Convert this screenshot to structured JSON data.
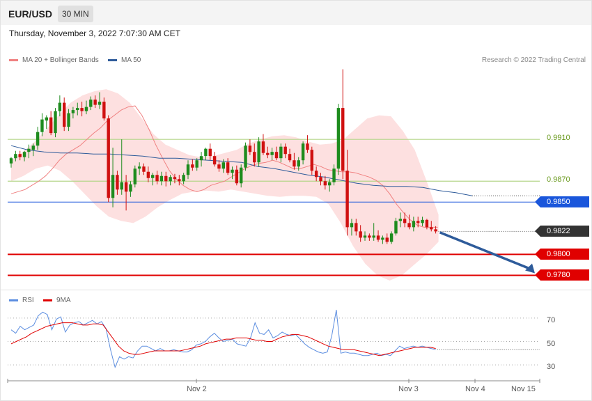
{
  "header": {
    "pair": "EUR/USD",
    "timeframe": "30 MIN"
  },
  "date_text": "Thursday, November 3, 2022 7:07:30 AM CET",
  "credit": "Research © 2022 Trading Central",
  "legend_main": [
    {
      "label": "MA 20 + Bollinger Bands",
      "color": "#f08080"
    },
    {
      "label": "MA 50",
      "color": "#2e5b9a"
    }
  ],
  "legend_rsi": [
    {
      "label": "RSI",
      "color": "#5b8de0"
    },
    {
      "label": "9MA",
      "color": "#e00000"
    }
  ],
  "colors": {
    "up": "#1e8c1e",
    "down": "#d01010",
    "ma20": "#f08080",
    "ma50": "#2e5b9a",
    "band": "#fde0e0",
    "support": "#e00000",
    "pivot": "#1a56db",
    "resistance": "#b5d68a",
    "arrow": "#2e5b9a",
    "last": "#333333"
  },
  "levels": {
    "r1": "0.9910",
    "r2": "0.9870",
    "pivot": "0.9850",
    "last": "0.9822",
    "s1": "0.9800",
    "s2": "0.9780"
  },
  "rsi_ticks": [
    "70",
    "50",
    "30"
  ],
  "x_ticks": [
    "Nov 2",
    "Nov 3",
    "Nov 4",
    "Nov 15"
  ],
  "chart_data": [
    {
      "type": "candlestick",
      "title": "EUR/USD 30 MIN",
      "ylim": [
        0.9767,
        0.998
      ],
      "levels": [
        0.991,
        0.987,
        0.985,
        0.9822,
        0.98,
        0.978
      ],
      "ohlc": [
        [
          0.9887,
          0.9893,
          0.9883,
          0.9892
        ],
        [
          0.9892,
          0.9899,
          0.9889,
          0.9896
        ],
        [
          0.9896,
          0.9899,
          0.989,
          0.9893
        ],
        [
          0.9893,
          0.9899,
          0.9889,
          0.9898
        ],
        [
          0.9898,
          0.9905,
          0.9892,
          0.9901
        ],
        [
          0.99,
          0.9906,
          0.9894,
          0.9904
        ],
        [
          0.9904,
          0.9922,
          0.99,
          0.9917
        ],
        [
          0.9917,
          0.9935,
          0.9913,
          0.9929
        ],
        [
          0.9928,
          0.9933,
          0.992,
          0.9931
        ],
        [
          0.9931,
          0.9937,
          0.9914,
          0.9916
        ],
        [
          0.9916,
          0.994,
          0.9912,
          0.9937
        ],
        [
          0.9937,
          0.9952,
          0.9932,
          0.9945
        ],
        [
          0.9945,
          0.995,
          0.9918,
          0.9922
        ],
        [
          0.9922,
          0.9939,
          0.9918,
          0.9935
        ],
        [
          0.9935,
          0.9941,
          0.993,
          0.9938
        ],
        [
          0.9938,
          0.9945,
          0.9933,
          0.994
        ],
        [
          0.994,
          0.9946,
          0.9932,
          0.9937
        ],
        [
          0.9937,
          0.9947,
          0.9934,
          0.9941
        ],
        [
          0.9941,
          0.9951,
          0.9938,
          0.9948
        ],
        [
          0.9948,
          0.9952,
          0.994,
          0.9943
        ],
        [
          0.9943,
          0.9955,
          0.9939,
          0.9946
        ],
        [
          0.9946,
          0.995,
          0.9928,
          0.993
        ],
        [
          0.993,
          0.9933,
          0.985,
          0.9854
        ],
        [
          0.9854,
          0.9902,
          0.9845,
          0.9876
        ],
        [
          0.9876,
          0.988,
          0.9857,
          0.9862
        ],
        [
          0.9862,
          0.991,
          0.9857,
          0.9869
        ],
        [
          0.9869,
          0.9876,
          0.9842,
          0.986
        ],
        [
          0.986,
          0.987,
          0.9855,
          0.9867
        ],
        [
          0.9867,
          0.9885,
          0.9864,
          0.9882
        ],
        [
          0.9882,
          0.9888,
          0.9876,
          0.9884
        ],
        [
          0.9884,
          0.9887,
          0.9876,
          0.9879
        ],
        [
          0.9879,
          0.9884,
          0.9869,
          0.9873
        ],
        [
          0.9873,
          0.9878,
          0.9866,
          0.9876
        ],
        [
          0.9876,
          0.988,
          0.9867,
          0.987
        ],
        [
          0.987,
          0.9879,
          0.9866,
          0.9875
        ],
        [
          0.9875,
          0.9879,
          0.9865,
          0.987
        ],
        [
          0.987,
          0.9876,
          0.9866,
          0.9874
        ],
        [
          0.9874,
          0.9877,
          0.9868,
          0.9872
        ],
        [
          0.9872,
          0.9876,
          0.9866,
          0.987
        ],
        [
          0.987,
          0.9878,
          0.9867,
          0.9876
        ],
        [
          0.9876,
          0.989,
          0.9872,
          0.9886
        ],
        [
          0.9886,
          0.9891,
          0.988,
          0.9883
        ],
        [
          0.9883,
          0.9892,
          0.988,
          0.989
        ],
        [
          0.989,
          0.9898,
          0.9884,
          0.9894
        ],
        [
          0.9894,
          0.9902,
          0.989,
          0.9901
        ],
        [
          0.9901,
          0.9906,
          0.989,
          0.9894
        ],
        [
          0.9894,
          0.9898,
          0.9884,
          0.9886
        ],
        [
          0.9886,
          0.989,
          0.9879,
          0.9882
        ],
        [
          0.9882,
          0.9891,
          0.9878,
          0.9888
        ],
        [
          0.9888,
          0.9892,
          0.9876,
          0.9878
        ],
        [
          0.9878,
          0.9884,
          0.9872,
          0.9881
        ],
        [
          0.9881,
          0.9885,
          0.9866,
          0.9868
        ],
        [
          0.9868,
          0.9886,
          0.9864,
          0.9883
        ],
        [
          0.9883,
          0.9907,
          0.988,
          0.9904
        ],
        [
          0.9904,
          0.991,
          0.9895,
          0.9898
        ],
        [
          0.9898,
          0.9906,
          0.9884,
          0.9888
        ],
        [
          0.9888,
          0.9912,
          0.9884,
          0.9908
        ],
        [
          0.9908,
          0.9915,
          0.9895,
          0.9897
        ],
        [
          0.9897,
          0.9903,
          0.9892,
          0.9895
        ],
        [
          0.9895,
          0.9902,
          0.989,
          0.9898
        ],
        [
          0.9898,
          0.9903,
          0.989,
          0.9892
        ],
        [
          0.9892,
          0.9906,
          0.9888,
          0.9903
        ],
        [
          0.9903,
          0.9906,
          0.9892,
          0.9896
        ],
        [
          0.9896,
          0.9901,
          0.9888,
          0.989
        ],
        [
          0.989,
          0.9897,
          0.9881,
          0.9884
        ],
        [
          0.9884,
          0.9893,
          0.988,
          0.989
        ],
        [
          0.989,
          0.9908,
          0.9886,
          0.9906
        ],
        [
          0.9906,
          0.9914,
          0.9897,
          0.99
        ],
        [
          0.99,
          0.9903,
          0.9876,
          0.988
        ],
        [
          0.988,
          0.9884,
          0.987,
          0.9874
        ],
        [
          0.9874,
          0.9878,
          0.9866,
          0.987
        ],
        [
          0.987,
          0.9875,
          0.9862,
          0.9866
        ],
        [
          0.9866,
          0.9872,
          0.986,
          0.9869
        ],
        [
          0.9869,
          0.9886,
          0.9866,
          0.9882
        ],
        [
          0.9882,
          0.9944,
          0.9876,
          0.994
        ],
        [
          0.994,
          0.9977,
          0.9872,
          0.988
        ],
        [
          0.988,
          0.99,
          0.9818,
          0.9826
        ],
        [
          0.9826,
          0.9834,
          0.9818,
          0.983
        ],
        [
          0.983,
          0.9834,
          0.9818,
          0.9822
        ],
        [
          0.9822,
          0.9828,
          0.9812,
          0.9816
        ],
        [
          0.9816,
          0.9822,
          0.9813,
          0.9818
        ],
        [
          0.9818,
          0.982,
          0.9813,
          0.9816
        ],
        [
          0.9816,
          0.983,
          0.9813,
          0.9818
        ],
        [
          0.9818,
          0.9823,
          0.9812,
          0.9814
        ],
        [
          0.9814,
          0.9818,
          0.981,
          0.9816
        ],
        [
          0.9816,
          0.982,
          0.981,
          0.9812
        ],
        [
          0.9812,
          0.9822,
          0.981,
          0.982
        ],
        [
          0.982,
          0.9835,
          0.9818,
          0.9832
        ],
        [
          0.9832,
          0.984,
          0.9826,
          0.9834
        ],
        [
          0.9834,
          0.984,
          0.9826,
          0.983
        ],
        [
          0.983,
          0.9838,
          0.9824,
          0.9826
        ],
        [
          0.9826,
          0.9836,
          0.9822,
          0.9832
        ],
        [
          0.9832,
          0.9836,
          0.9826,
          0.983
        ],
        [
          0.983,
          0.9836,
          0.9827,
          0.9833
        ],
        [
          0.9833,
          0.9834,
          0.9824,
          0.9826
        ],
        [
          0.9826,
          0.9832,
          0.9822,
          0.9824
        ],
        [
          0.9824,
          0.9827,
          0.982,
          0.9822
        ]
      ],
      "ma20": [
        0.9858,
        0.986,
        0.9862,
        0.9866,
        0.987,
        0.9875,
        0.9882,
        0.989,
        0.9896,
        0.99,
        0.9904,
        0.991,
        0.9916,
        0.9921,
        0.9928,
        0.9933,
        0.9938,
        0.9941,
        0.9942,
        0.9933,
        0.992,
        0.9905,
        0.9892,
        0.988,
        0.9872,
        0.9866,
        0.9862,
        0.986,
        0.9862,
        0.9866,
        0.9868,
        0.987,
        0.9874,
        0.9878,
        0.9882,
        0.9885,
        0.9887,
        0.9888,
        0.989,
        0.9888,
        0.9885,
        0.9882,
        0.9882,
        0.9884,
        0.9886,
        0.9884,
        0.9881,
        0.988,
        0.9879,
        0.9879,
        0.9878,
        0.9876,
        0.9874,
        0.9871,
        0.9866,
        0.9858,
        0.9848,
        0.984,
        0.9833,
        0.9828,
        0.9826,
        0.9826,
        0.9826
      ],
      "ma50": [
        0.9904,
        0.99,
        0.9898,
        0.9897,
        0.9897,
        0.9896,
        0.9896,
        0.9895,
        0.9894,
        0.9892,
        0.9892,
        0.9891,
        0.989,
        0.9889,
        0.9888,
        0.9884,
        0.9882,
        0.9879,
        0.9876,
        0.9874,
        0.9871,
        0.9868,
        0.9866,
        0.9865,
        0.9865,
        0.9864,
        0.9861,
        0.9859,
        0.9856
      ],
      "bb_upper": [
        0.989,
        0.9898,
        0.9908,
        0.992,
        0.9933,
        0.9945,
        0.9952,
        0.9956,
        0.9958,
        0.9954,
        0.9945,
        0.993,
        0.9915,
        0.9905,
        0.99,
        0.9895,
        0.9893,
        0.9894,
        0.9897,
        0.99,
        0.9906,
        0.991,
        0.9913,
        0.9914,
        0.9912,
        0.9908,
        0.9905,
        0.9906,
        0.991,
        0.992,
        0.993,
        0.9933,
        0.9932,
        0.9918,
        0.99,
        0.987,
        0.9838
      ],
      "bb_lower": [
        0.987,
        0.9875,
        0.9882,
        0.9885,
        0.988,
        0.987,
        0.9858,
        0.9846,
        0.9836,
        0.9832,
        0.983,
        0.9836,
        0.9845,
        0.9852,
        0.9858,
        0.986,
        0.9861,
        0.986,
        0.9862,
        0.986,
        0.9858,
        0.9856,
        0.9855,
        0.9856,
        0.9856,
        0.9855,
        0.9848,
        0.983,
        0.9808,
        0.9791,
        0.978,
        0.9775,
        0.978,
        0.979,
        0.98,
        0.9812
      ]
    },
    {
      "type": "line",
      "series": [
        {
          "name": "RSI",
          "values": [
            60,
            57,
            63,
            60,
            62,
            64,
            72,
            75,
            73,
            60,
            69,
            71,
            58,
            64,
            66,
            67,
            64,
            66,
            68,
            65,
            67,
            61,
            43,
            28,
            37,
            35,
            37,
            36,
            42,
            46,
            46,
            44,
            42,
            44,
            42,
            42,
            43,
            42,
            41,
            41,
            43,
            47,
            48,
            50,
            54,
            57,
            53,
            50,
            51,
            52,
            48,
            47,
            46,
            53,
            66,
            57,
            56,
            60,
            53,
            55,
            58,
            56,
            55,
            56,
            52,
            48,
            45,
            43,
            41,
            40,
            41,
            55,
            77,
            40,
            41,
            40,
            40,
            39,
            38,
            38,
            39,
            40,
            38,
            39,
            38,
            42,
            46,
            44,
            45,
            46,
            45,
            46,
            45,
            44,
            43
          ]
        },
        {
          "name": "9MA",
          "values": [
            48,
            50,
            52,
            54,
            57,
            59,
            61,
            63,
            64,
            65,
            66,
            66,
            66,
            65,
            64,
            64,
            65,
            65,
            64,
            58,
            52,
            46,
            42,
            40,
            39,
            39,
            40,
            41,
            42,
            42,
            42,
            42,
            42,
            42,
            43,
            44,
            45,
            46,
            48,
            49,
            50,
            51,
            52,
            52,
            53,
            53,
            53,
            52,
            51,
            51,
            50,
            50,
            52,
            54,
            55,
            56,
            56,
            55,
            54,
            52,
            50,
            48,
            46,
            45,
            44,
            43,
            43,
            43,
            42,
            41,
            40,
            39,
            38,
            39,
            40,
            41,
            42,
            43,
            44,
            45,
            45,
            45,
            45,
            44
          ]
        }
      ],
      "ylim": [
        20,
        80
      ]
    }
  ]
}
